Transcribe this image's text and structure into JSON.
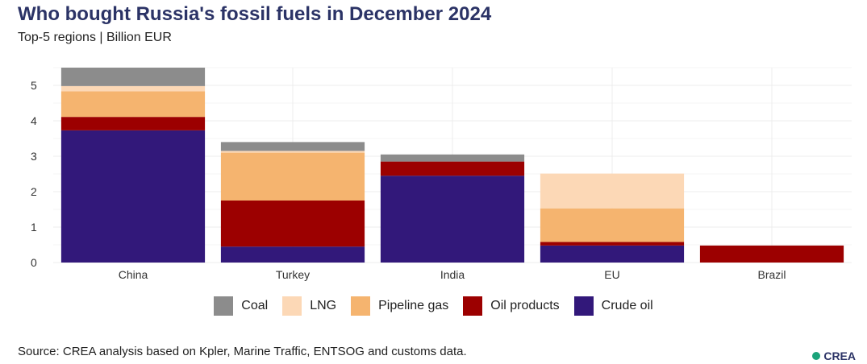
{
  "title": "Who bought Russia's fossil fuels in December 2024",
  "subtitle": "Top-5 regions | Billion EUR",
  "source": "Source: CREA analysis based on Kpler, Marine Traffic, ENTSOG and customs data.",
  "logo_text": "CREA",
  "chart_data": {
    "type": "bar",
    "stacked": true,
    "categories": [
      "China",
      "Turkey",
      "India",
      "EU",
      "Brazil"
    ],
    "ylim": [
      0,
      5.5
    ],
    "yticks": [
      0,
      1,
      2,
      3,
      4,
      5
    ],
    "grid": true,
    "legend_position": "bottom",
    "series": [
      {
        "name": "Crude oil",
        "color": "#32187a",
        "values": [
          3.73,
          0.45,
          2.45,
          0.48,
          0
        ]
      },
      {
        "name": "Oil products",
        "color": "#9c0000",
        "values": [
          0.38,
          1.3,
          0.4,
          0.1,
          0.48
        ]
      },
      {
        "name": "Pipeline gas",
        "color": "#f5b46f",
        "values": [
          0.72,
          1.35,
          0,
          0.95,
          0
        ]
      },
      {
        "name": "LNG",
        "color": "#fcd8b6",
        "values": [
          0.15,
          0.05,
          0,
          0.98,
          0
        ]
      },
      {
        "name": "Coal",
        "color": "#8c8c8c",
        "values": [
          0.52,
          0.25,
          0.2,
          0,
          0
        ]
      }
    ],
    "legend_order": [
      "Coal",
      "LNG",
      "Pipeline gas",
      "Oil products",
      "Crude oil"
    ]
  }
}
